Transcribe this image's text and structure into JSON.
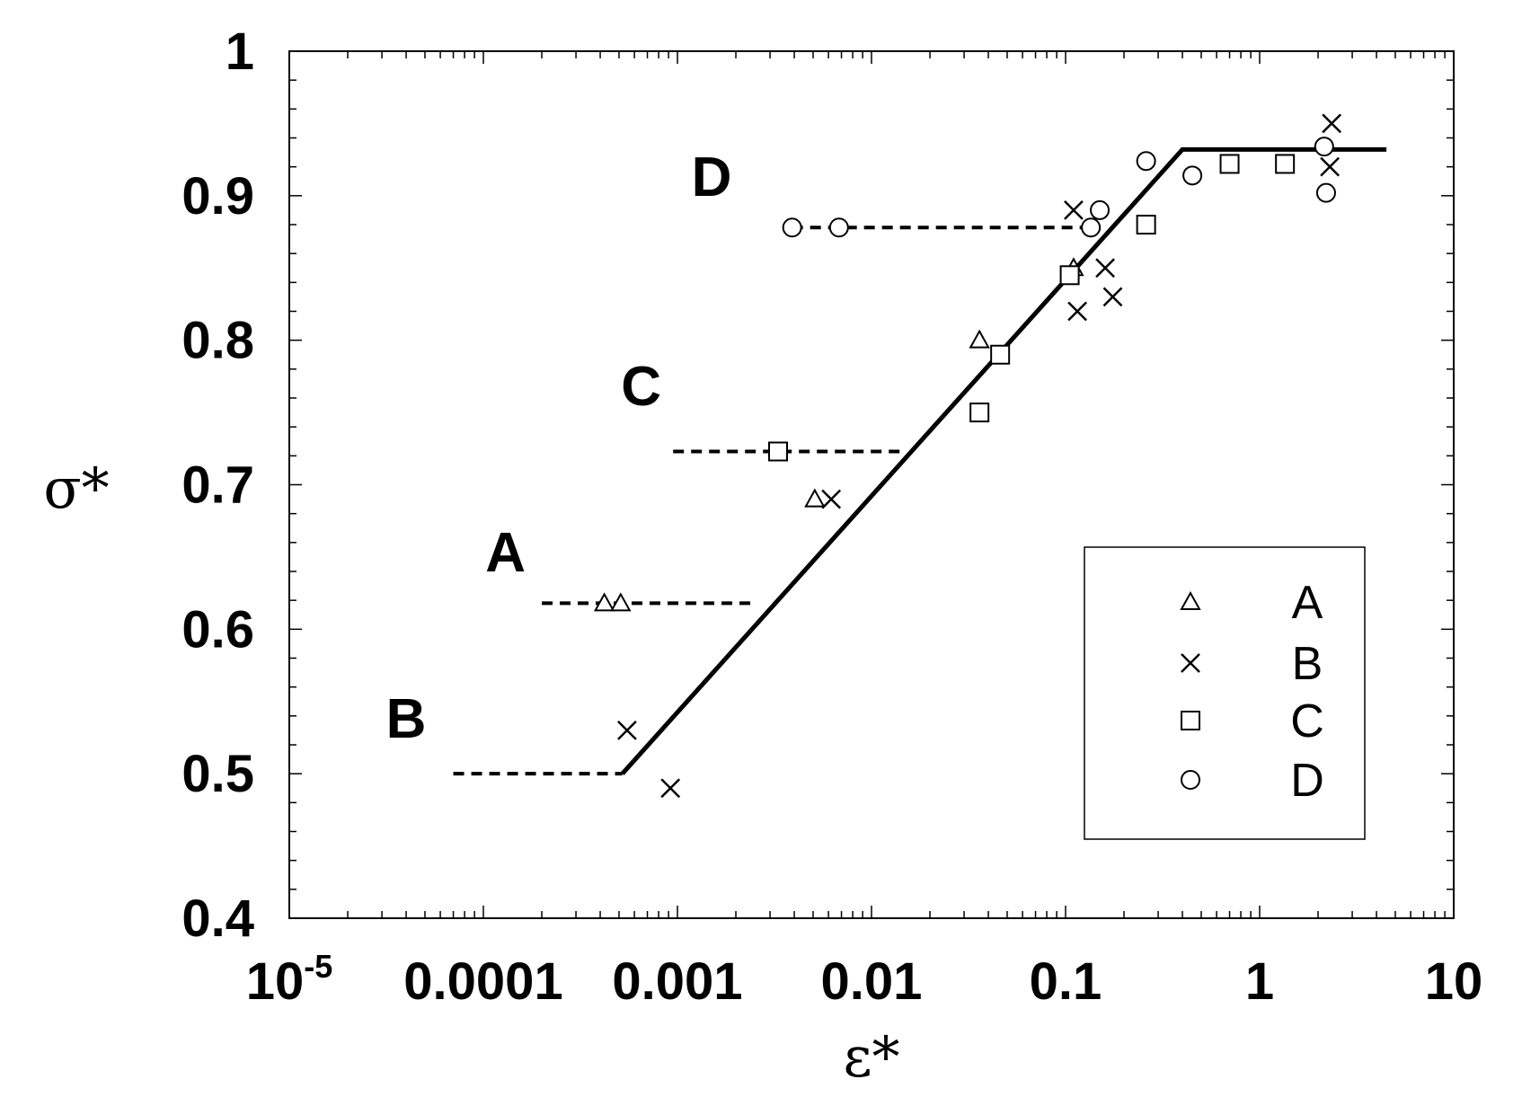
{
  "chart_data": {
    "type": "scatter",
    "xlabel": "ε*",
    "ylabel": "σ*",
    "xscale": "log",
    "xlim": [
      1e-05,
      10
    ],
    "ylim": [
      0.4,
      1.0
    ],
    "x_tick_labels": [
      {
        "value": 1e-05,
        "base": "10",
        "exp": "-5"
      },
      {
        "value": 0.0001,
        "text": "0.0001"
      },
      {
        "value": 0.001,
        "text": "0.001"
      },
      {
        "value": 0.01,
        "text": "0.01"
      },
      {
        "value": 0.1,
        "text": "0.1"
      },
      {
        "value": 1,
        "text": "1"
      },
      {
        "value": 10,
        "text": "10"
      }
    ],
    "y_tick_labels": [
      {
        "value": 0.4,
        "text": "0.4"
      },
      {
        "value": 0.5,
        "text": "0.5"
      },
      {
        "value": 0.6,
        "text": "0.6"
      },
      {
        "value": 0.7,
        "text": "0.7"
      },
      {
        "value": 0.8,
        "text": "0.8"
      },
      {
        "value": 0.9,
        "text": "0.9"
      },
      {
        "value": 1.0,
        "text": "1"
      }
    ],
    "series": [
      {
        "name": "A",
        "marker": "triangle",
        "points": [
          [
            0.00042,
            0.618
          ],
          [
            0.00051,
            0.618
          ],
          [
            0.0051,
            0.69
          ],
          [
            0.036,
            0.8
          ],
          [
            0.11,
            0.85
          ]
        ]
      },
      {
        "name": "B",
        "marker": "cross",
        "points": [
          [
            0.00055,
            0.53
          ],
          [
            0.00092,
            0.49
          ],
          [
            0.0062,
            0.69
          ],
          [
            0.11,
            0.89
          ],
          [
            0.115,
            0.82
          ],
          [
            0.16,
            0.85
          ],
          [
            0.175,
            0.83
          ],
          [
            2.35,
            0.95
          ],
          [
            2.3,
            0.92
          ]
        ]
      },
      {
        "name": "C",
        "marker": "square",
        "points": [
          [
            0.0033,
            0.723
          ],
          [
            0.036,
            0.75
          ],
          [
            0.046,
            0.79
          ],
          [
            0.105,
            0.845
          ],
          [
            0.26,
            0.88
          ],
          [
            0.7,
            0.922
          ],
          [
            1.35,
            0.922
          ]
        ]
      },
      {
        "name": "D",
        "marker": "circle",
        "points": [
          [
            0.0039,
            0.878
          ],
          [
            0.0068,
            0.878
          ],
          [
            0.135,
            0.878
          ],
          [
            0.15,
            0.89
          ],
          [
            0.26,
            0.924
          ],
          [
            0.45,
            0.914
          ],
          [
            2.15,
            0.934
          ],
          [
            2.2,
            0.902
          ]
        ]
      }
    ],
    "fit_line": {
      "style": "solid",
      "points": [
        [
          0.00052,
          0.5
        ],
        [
          0.4,
          0.932
        ],
        [
          4.5,
          0.932
        ]
      ]
    },
    "reference_lines": [
      {
        "label": "B",
        "y": 0.5,
        "x_start": 7e-05,
        "x_end": 0.00052
      },
      {
        "label": "A",
        "y": 0.618,
        "x_start": 0.0002,
        "x_end": 0.0025
      },
      {
        "label": "C",
        "y": 0.723,
        "x_start": 0.00095,
        "x_end": 0.015
      },
      {
        "label": "D",
        "y": 0.878,
        "x_start": 0.0039,
        "x_end": 0.135
      }
    ],
    "group_labels": [
      {
        "text": "D",
        "x": 0.0015,
        "y": 0.9
      },
      {
        "text": "C",
        "x": 0.00065,
        "y": 0.755
      },
      {
        "text": "A",
        "x": 0.00013,
        "y": 0.64
      },
      {
        "text": "B",
        "x": 4e-05,
        "y": 0.525
      }
    ],
    "legend": {
      "position": "bottom-right",
      "entries": [
        {
          "label": "A",
          "marker": "triangle"
        },
        {
          "label": "B",
          "marker": "cross"
        },
        {
          "label": "C",
          "marker": "square"
        },
        {
          "label": "D",
          "marker": "circle"
        }
      ]
    },
    "colors": {
      "ink": "#000000",
      "marker_fill": "#ffffff"
    }
  }
}
